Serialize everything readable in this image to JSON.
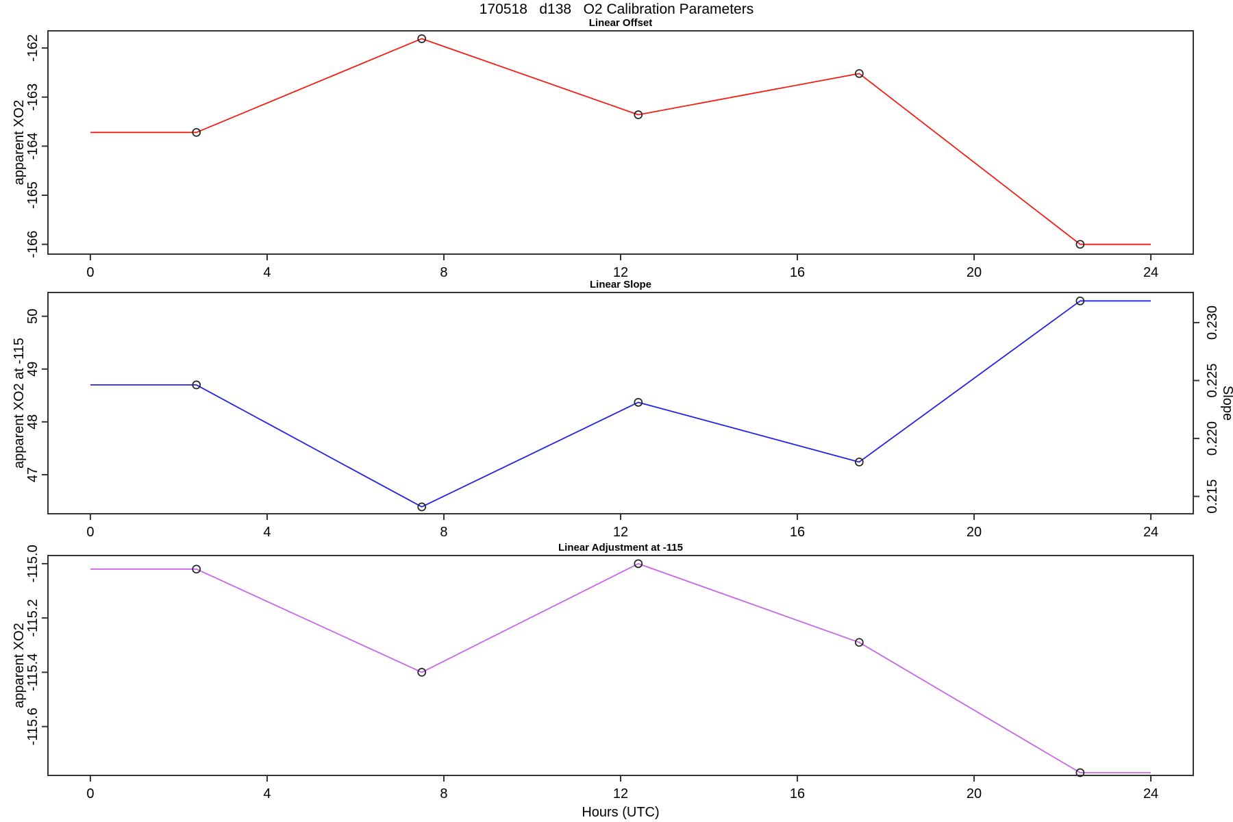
{
  "title": "170518   d138   O2 Calibration Parameters",
  "xlabel": "Hours (UTC)",
  "chart_data": [
    {
      "type": "line",
      "title": "Linear Offset",
      "color": "#f51d12",
      "marker": "open-circle",
      "x": [
        0,
        2.4,
        7.5,
        12.4,
        17.4,
        22.4,
        24
      ],
      "y": [
        -163.72,
        -163.72,
        -161.81,
        -163.36,
        -162.52,
        -166.0,
        -166.0
      ],
      "markers": [
        1,
        2,
        3,
        4,
        5
      ],
      "xlim": [
        -0.96,
        24.96
      ],
      "ylim": [
        -166.2,
        -161.65
      ],
      "x_ticks": [
        0,
        4,
        8,
        12,
        16,
        20,
        24
      ],
      "x_tick_labels": [
        "0",
        "4",
        "8",
        "12",
        "16",
        "20",
        "24"
      ],
      "y_ticks": [
        -166,
        -165,
        -164,
        -163,
        -162
      ],
      "y_tick_labels": [
        "-166",
        "-165",
        "-164",
        "-163",
        "-162"
      ],
      "ylabel": "apparent XO2",
      "xlabel": ""
    },
    {
      "type": "line",
      "title": "Linear Slope",
      "color": "#2222e8",
      "marker": "open-circle",
      "x": [
        0,
        2.4,
        7.5,
        12.4,
        17.4,
        22.4,
        24
      ],
      "y": [
        48.7,
        48.7,
        46.39,
        48.37,
        47.24,
        50.29,
        50.29
      ],
      "markers": [
        1,
        2,
        3,
        4,
        5
      ],
      "xlim": [
        -0.96,
        24.96
      ],
      "ylim": [
        46.26,
        50.45
      ],
      "x_ticks": [
        0,
        4,
        8,
        12,
        16,
        20,
        24
      ],
      "x_tick_labels": [
        "0",
        "4",
        "8",
        "12",
        "16",
        "20",
        "24"
      ],
      "y_ticks": [
        47,
        48,
        49,
        50
      ],
      "y_tick_labels": [
        "47",
        "48",
        "49",
        "50"
      ],
      "ylabel": "apparent XO2 at -115",
      "xlabel": "",
      "y2": {
        "label": "Slope",
        "lim": [
          0.2135,
          0.2326
        ],
        "ticks": [
          0.215,
          0.22,
          0.225,
          0.23
        ],
        "tick_labels": [
          "0.215",
          "0.220",
          "0.225",
          "0.230"
        ]
      }
    },
    {
      "type": "line",
      "title": "Linear Adjustment at -115",
      "color": "#c766e6",
      "marker": "open-circle",
      "x": [
        0,
        2.4,
        7.5,
        12.4,
        17.4,
        22.4,
        24
      ],
      "y": [
        -115.02,
        -115.02,
        -115.4,
        -115.0,
        -115.29,
        -115.77,
        -115.77
      ],
      "markers": [
        1,
        2,
        3,
        4,
        5
      ],
      "xlim": [
        -0.96,
        24.96
      ],
      "ylim": [
        -115.78,
        -114.97
      ],
      "x_ticks": [
        0,
        4,
        8,
        12,
        16,
        20,
        24
      ],
      "x_tick_labels": [
        "0",
        "4",
        "8",
        "12",
        "16",
        "20",
        "24"
      ],
      "y_ticks": [
        -115.6,
        -115.4,
        -115.2,
        -115.0
      ],
      "y_tick_labels": [
        "-115.6",
        "-115.4",
        "-115.2",
        "-115.0"
      ],
      "ylabel": "apparent XO2",
      "xlabel": "Hours (UTC)"
    }
  ]
}
